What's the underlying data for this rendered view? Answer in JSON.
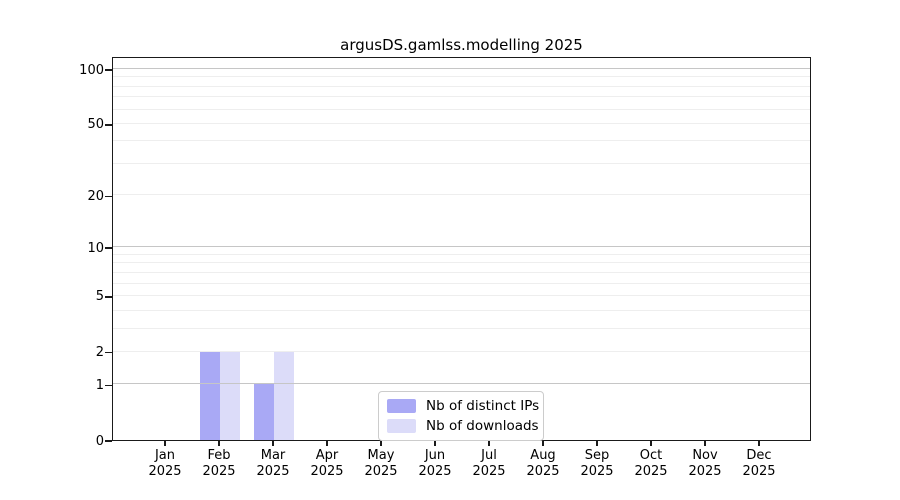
{
  "chart_data": {
    "type": "bar",
    "title": "argusDS.gamlss.modelling 2025",
    "categories": [
      "Jan",
      "Feb",
      "Mar",
      "Apr",
      "May",
      "Jun",
      "Jul",
      "Aug",
      "Sep",
      "Oct",
      "Nov",
      "Dec"
    ],
    "year_label": "2025",
    "series": [
      {
        "name": "Nb of distinct IPs",
        "color": "#a9a9f5",
        "values": [
          0,
          2,
          1,
          0,
          0,
          0,
          0,
          0,
          0,
          0,
          0,
          0
        ]
      },
      {
        "name": "Nb of downloads",
        "color": "#dcdcf9",
        "values": [
          0,
          2,
          2,
          0,
          0,
          0,
          0,
          0,
          0,
          0,
          0,
          0
        ]
      }
    ],
    "xlabel": "",
    "ylabel": "",
    "yscale": "log1p",
    "ylim": [
      0,
      118
    ],
    "yticks": [
      0,
      1,
      2,
      5,
      10,
      20,
      50,
      100
    ],
    "major_gridlines": [
      1,
      10,
      100
    ],
    "minor_gridlines": [
      2,
      3,
      4,
      5,
      6,
      7,
      8,
      9,
      20,
      30,
      40,
      50,
      60,
      70,
      80,
      90
    ],
    "grid": true,
    "legend_position": "bottom-center"
  },
  "colors": {
    "bar_distinct_ips": "#a9a9f5",
    "bar_downloads": "#dcdcf9",
    "major_gridline": "#c6c6c6",
    "minor_gridline": "#eeeeee",
    "axis": "#1a1a1a",
    "background": "#ffffff",
    "legend_border": "#cccccc"
  }
}
